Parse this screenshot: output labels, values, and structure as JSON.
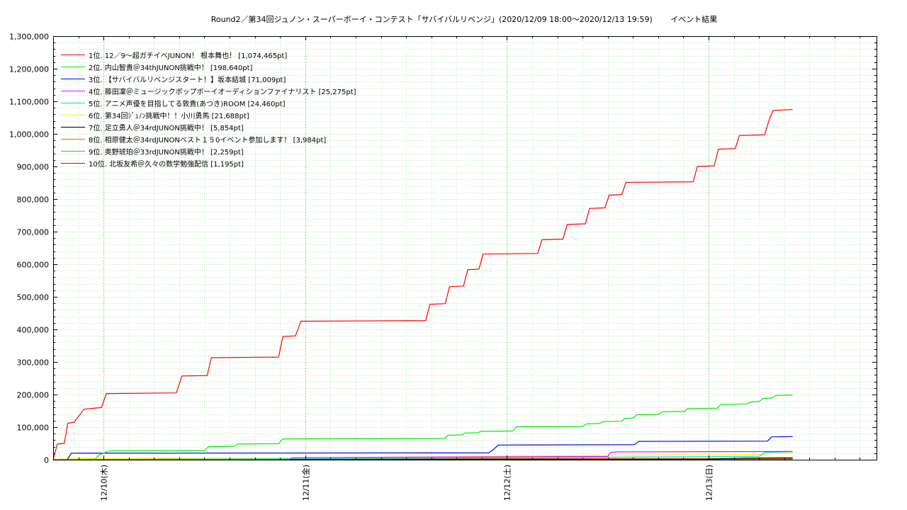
{
  "chart_data": {
    "type": "line",
    "title": "Round2／第34回ジュノン・スーパーボーイ・コンテスト「サバイバルリベンジ」(2020/12/09 18:00〜2020/12/13 19:59)　　 イベント結果",
    "xlabel": "",
    "ylabel": "",
    "xlim": [
      "2020-12-09 18:00",
      "2020-12-13 19:59"
    ],
    "ylim": [
      0,
      1300000
    ],
    "yticks": [
      "0",
      "100,000",
      "200,000",
      "300,000",
      "400,000",
      "500,000",
      "600,000",
      "700,000",
      "800,000",
      "900,000",
      "1,000,000",
      "1,100,000",
      "1,200,000",
      "1,300,000"
    ],
    "xticks": [
      {
        "t": "2020-12-10 00:00",
        "label": "12/10(木)"
      },
      {
        "t": "2020-12-11 00:00",
        "label": "12/11(金)"
      },
      {
        "t": "2020-12-12 00:00",
        "label": "12/12(土)"
      },
      {
        "t": "2020-12-13 00:00",
        "label": "12/13(日)"
      }
    ],
    "grid": true,
    "legend_position": "top-left",
    "series": [
      {
        "name": "1位. 12／9〜超ガチイベJUNON！ 根本舞也！ [1,074,465pt]",
        "color": "#ff0000",
        "points": [
          [
            "2020-12-09 18:00",
            0
          ],
          [
            "2020-12-09 18:30",
            48000
          ],
          [
            "2020-12-09 19:20",
            50000
          ],
          [
            "2020-12-09 19:45",
            112000
          ],
          [
            "2020-12-09 20:30",
            115000
          ],
          [
            "2020-12-09 21:40",
            155000
          ],
          [
            "2020-12-09 23:45",
            160000
          ],
          [
            "2020-12-10 00:20",
            203000
          ],
          [
            "2020-12-10 08:40",
            205000
          ],
          [
            "2020-12-10 09:20",
            257000
          ],
          [
            "2020-12-10 12:20",
            258000
          ],
          [
            "2020-12-10 12:50",
            313000
          ],
          [
            "2020-12-10 20:50",
            315000
          ],
          [
            "2020-12-10 21:20",
            378000
          ],
          [
            "2020-12-10 22:50",
            380000
          ],
          [
            "2020-12-10 23:30",
            425000
          ],
          [
            "2020-12-11 14:20",
            427000
          ],
          [
            "2020-12-11 14:50",
            477000
          ],
          [
            "2020-12-11 16:40",
            479000
          ],
          [
            "2020-12-11 17:10",
            531000
          ],
          [
            "2020-12-11 18:50",
            533000
          ],
          [
            "2020-12-11 19:20",
            583000
          ],
          [
            "2020-12-11 20:40",
            585000
          ],
          [
            "2020-12-11 21:10",
            631000
          ],
          [
            "2020-12-12 03:40",
            633000
          ],
          [
            "2020-12-12 04:10",
            675000
          ],
          [
            "2020-12-12 06:40",
            677000
          ],
          [
            "2020-12-12 07:10",
            722000
          ],
          [
            "2020-12-12 09:20",
            724000
          ],
          [
            "2020-12-12 09:50",
            771000
          ],
          [
            "2020-12-12 11:40",
            773000
          ],
          [
            "2020-12-12 12:10",
            812000
          ],
          [
            "2020-12-12 13:40",
            814000
          ],
          [
            "2020-12-12 14:10",
            851000
          ],
          [
            "2020-12-12 22:10",
            853000
          ],
          [
            "2020-12-12 22:40",
            900000
          ],
          [
            "2020-12-13 00:40",
            902000
          ],
          [
            "2020-12-13 01:10",
            953000
          ],
          [
            "2020-12-13 03:10",
            955000
          ],
          [
            "2020-12-13 03:40",
            995000
          ],
          [
            "2020-12-13 06:40",
            997000
          ],
          [
            "2020-12-13 07:10",
            1040000
          ],
          [
            "2020-12-13 07:40",
            1072000
          ],
          [
            "2020-12-13 10:00",
            1074465
          ]
        ]
      },
      {
        "name": "2位. 内山智貴＠34thJUNON挑戦中！ [198,640pt]",
        "color": "#00ee00",
        "points": [
          [
            "2020-12-09 18:00",
            0
          ],
          [
            "2020-12-09 23:00",
            2000
          ],
          [
            "2020-12-09 23:30",
            15000
          ],
          [
            "2020-12-10 00:40",
            27000
          ],
          [
            "2020-12-10 12:00",
            28000
          ],
          [
            "2020-12-10 12:30",
            40000
          ],
          [
            "2020-12-10 15:30",
            41000
          ],
          [
            "2020-12-10 16:00",
            48000
          ],
          [
            "2020-12-10 20:50",
            49000
          ],
          [
            "2020-12-10 21:20",
            64000
          ],
          [
            "2020-12-11 16:30",
            65000
          ],
          [
            "2020-12-11 17:00",
            75000
          ],
          [
            "2020-12-11 18:40",
            76000
          ],
          [
            "2020-12-11 19:00",
            82000
          ],
          [
            "2020-12-11 20:30",
            83000
          ],
          [
            "2020-12-11 21:00",
            87000
          ],
          [
            "2020-12-12 00:40",
            88000
          ],
          [
            "2020-12-12 01:10",
            101000
          ],
          [
            "2020-12-12 09:00",
            102000
          ],
          [
            "2020-12-12 09:30",
            110000
          ],
          [
            "2020-12-12 11:00",
            111000
          ],
          [
            "2020-12-12 11:30",
            117000
          ],
          [
            "2020-12-12 13:40",
            118000
          ],
          [
            "2020-12-12 14:00",
            127000
          ],
          [
            "2020-12-12 15:00",
            128000
          ],
          [
            "2020-12-12 15:30",
            138000
          ],
          [
            "2020-12-12 18:00",
            139000
          ],
          [
            "2020-12-12 18:30",
            147000
          ],
          [
            "2020-12-12 21:10",
            148000
          ],
          [
            "2020-12-12 21:30",
            157000
          ],
          [
            "2020-12-13 01:00",
            158000
          ],
          [
            "2020-12-13 01:30",
            170000
          ],
          [
            "2020-12-13 04:30",
            171000
          ],
          [
            "2020-12-13 05:00",
            177000
          ],
          [
            "2020-12-13 06:00",
            179000
          ],
          [
            "2020-12-13 06:30",
            188000
          ],
          [
            "2020-12-13 07:30",
            189000
          ],
          [
            "2020-12-13 08:00",
            197000
          ],
          [
            "2020-12-13 10:00",
            198640
          ]
        ]
      },
      {
        "name": "3位. 【サバイバルリベンジスタート！】坂本結城 [71,009pt]",
        "color": "#0000ff",
        "points": [
          [
            "2020-12-09 18:00",
            0
          ],
          [
            "2020-12-09 19:40",
            0
          ],
          [
            "2020-12-09 20:10",
            20000
          ],
          [
            "2020-12-11 21:50",
            21000
          ],
          [
            "2020-12-11 22:20",
            30000
          ],
          [
            "2020-12-11 23:00",
            45000
          ],
          [
            "2020-12-12 15:10",
            46000
          ],
          [
            "2020-12-12 15:40",
            56000
          ],
          [
            "2020-12-13 07:00",
            57000
          ],
          [
            "2020-12-13 07:30",
            70000
          ],
          [
            "2020-12-13 10:00",
            71009
          ]
        ]
      },
      {
        "name": "4位. 藤田凜＠ミュージックポップボーイオーディションファイナリスト [25,275pt]",
        "color": "#ff00ff",
        "points": [
          [
            "2020-12-09 18:00",
            0
          ],
          [
            "2020-12-10 22:00",
            0
          ],
          [
            "2020-12-10 22:30",
            6000
          ],
          [
            "2020-12-11 13:00",
            8000
          ],
          [
            "2020-12-12 12:00",
            10000
          ],
          [
            "2020-12-12 12:20",
            22000
          ],
          [
            "2020-12-12 13:00",
            24000
          ],
          [
            "2020-12-13 10:00",
            25275
          ]
        ]
      },
      {
        "name": "5位. アニメ声優を目指してる敦貴(あつき)ROOM [24,460pt]",
        "color": "#00dddd",
        "points": [
          [
            "2020-12-09 18:00",
            0
          ],
          [
            "2020-12-10 23:00",
            3000
          ],
          [
            "2020-12-12 14:00",
            8000
          ],
          [
            "2020-12-13 06:00",
            10000
          ],
          [
            "2020-12-13 06:40",
            22000
          ],
          [
            "2020-12-13 10:00",
            24460
          ]
        ]
      },
      {
        "name": "6位. 第34回ｼﾞｭﾉﾝ挑戦中！！小川勇馬 [21,688pt]",
        "color": "#ffff00",
        "points": [
          [
            "2020-12-09 18:00",
            0
          ],
          [
            "2020-12-09 20:00",
            4000
          ],
          [
            "2020-12-10 22:00",
            5000
          ],
          [
            "2020-12-12 16:00",
            14000
          ],
          [
            "2020-12-13 06:00",
            16000
          ],
          [
            "2020-12-13 10:00",
            21688
          ]
        ]
      },
      {
        "name": "7位. 足立勇人＠34rdJUNON挑戦中！ [5,854pt]",
        "color": "#000000",
        "points": [
          [
            "2020-12-09 18:00",
            0
          ],
          [
            "2020-12-11 00:00",
            1000
          ],
          [
            "2020-12-13 00:00",
            2000
          ],
          [
            "2020-12-13 04:40",
            5000
          ],
          [
            "2020-12-13 10:00",
            5854
          ]
        ]
      },
      {
        "name": "8位. 相原健太＠34rdJUNONベスト１５0イベント参加します！ [3,984pt]",
        "color": "#ff6600",
        "points": [
          [
            "2020-12-09 18:00",
            0
          ],
          [
            "2020-12-10 06:00",
            2000
          ],
          [
            "2020-12-11 00:00",
            2500
          ],
          [
            "2020-12-12 00:00",
            3000
          ],
          [
            "2020-12-13 10:00",
            3984
          ]
        ]
      },
      {
        "name": "9位. 奥野琥珀＠33rdJUNON挑戦中！ [2,259pt]",
        "color": "#888888",
        "points": [
          [
            "2020-12-09 18:00",
            0
          ],
          [
            "2020-12-10 12:00",
            1000
          ],
          [
            "2020-12-12 00:00",
            1800
          ],
          [
            "2020-12-13 10:00",
            2259
          ]
        ]
      },
      {
        "name": "10位. 北坂友希＠久々の数学勉強配信 [1,195pt]",
        "color": "#dd0000",
        "points": [
          [
            "2020-12-09 18:00",
            0
          ],
          [
            "2020-12-11 00:00",
            500
          ],
          [
            "2020-12-12 12:00",
            900
          ],
          [
            "2020-12-13 10:00",
            1195
          ]
        ]
      }
    ]
  }
}
